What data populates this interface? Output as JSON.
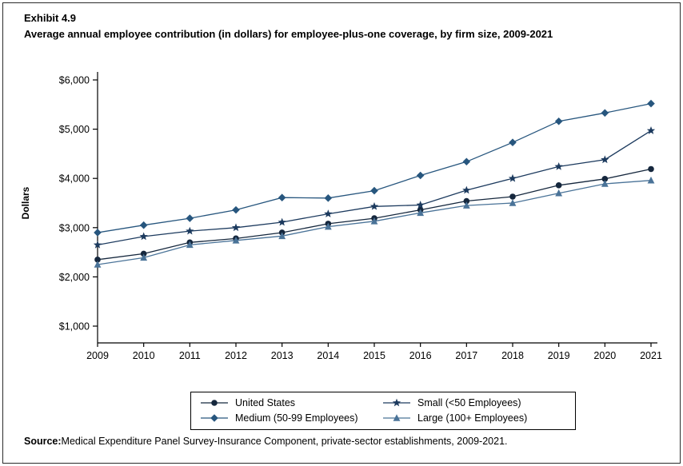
{
  "header": {
    "exhibit": "Exhibit 4.9",
    "title": "Average annual employee contribution (in dollars) for employee-plus-one coverage, by firm size, 2009-2021"
  },
  "chart_data": {
    "type": "line",
    "title": "Average annual employee contribution (in dollars) for employee-plus-one coverage, by firm size, 2009-2021",
    "xlabel": "",
    "ylabel": "Dollars",
    "ylim": [
      1000,
      6000
    ],
    "grid": false,
    "legend_position": "bottom",
    "y_ticks": [
      {
        "value": 1000,
        "label": "$1,000"
      },
      {
        "value": 2000,
        "label": "$2,000"
      },
      {
        "value": 3000,
        "label": "$3,000"
      },
      {
        "value": 4000,
        "label": "$4,000"
      },
      {
        "value": 5000,
        "label": "$5,000"
      },
      {
        "value": 6000,
        "label": "$6,000"
      }
    ],
    "categories": [
      "2009",
      "2010",
      "2011",
      "2012",
      "2013",
      "2014",
      "2015",
      "2016",
      "2017",
      "2018",
      "2019",
      "2020",
      "2021"
    ],
    "series": [
      {
        "name": "United States",
        "marker": "circle",
        "color": "#15273d",
        "values": [
          2350,
          2470,
          2700,
          2780,
          2900,
          3080,
          3190,
          3360,
          3540,
          3630,
          3860,
          3990,
          4190
        ]
      },
      {
        "name": "Small (<50 Employees)",
        "marker": "star",
        "color": "#1c3a5e",
        "values": [
          2650,
          2820,
          2930,
          3000,
          3110,
          3280,
          3430,
          3460,
          3760,
          4000,
          4240,
          4380,
          4970
        ]
      },
      {
        "name": "Medium (50-99 Employees)",
        "marker": "diamond",
        "color": "#27567e",
        "values": [
          2900,
          3050,
          3190,
          3360,
          3610,
          3600,
          3750,
          4060,
          4340,
          4730,
          5160,
          5330,
          5520
        ]
      },
      {
        "name": "Large (100+ Employees)",
        "marker": "triangle",
        "color": "#4a7398",
        "values": [
          2250,
          2390,
          2650,
          2740,
          2830,
          3020,
          3130,
          3300,
          3450,
          3500,
          3700,
          3890,
          3960
        ]
      }
    ]
  },
  "source": {
    "label": "Source:",
    "text": "Medical Expenditure Panel Survey-Insurance Component, private-sector establishments, 2009-2021."
  }
}
